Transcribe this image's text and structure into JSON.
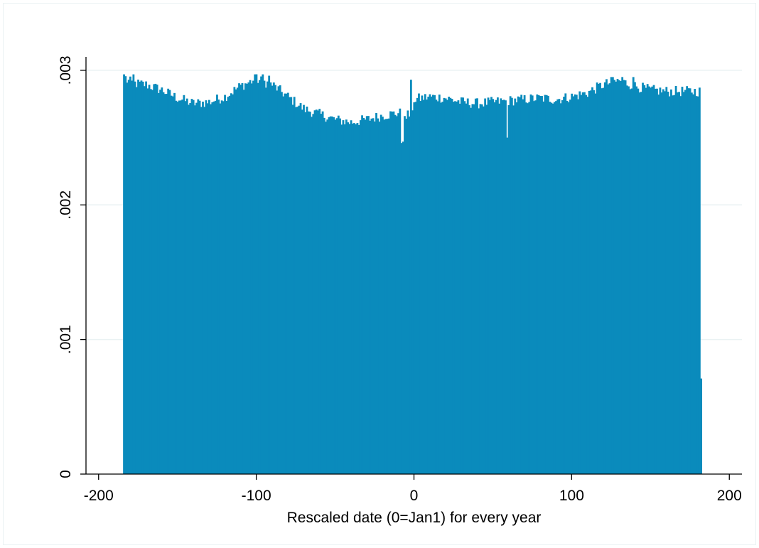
{
  "chart_data": {
    "type": "bar",
    "title": "",
    "xlabel": "Rescaled date (0=Jan1) for every year",
    "ylabel": "",
    "xlim": [
      -208,
      208
    ],
    "ylim": [
      0,
      0.0031
    ],
    "x_ticks": [
      {
        "value": -200,
        "label": "-200"
      },
      {
        "value": -100,
        "label": "-100"
      },
      {
        "value": 0,
        "label": "0"
      },
      {
        "value": 100,
        "label": "100"
      },
      {
        "value": 200,
        "label": "200"
      }
    ],
    "y_ticks": [
      {
        "value": 0,
        "label": "0"
      },
      {
        "value": 0.001,
        "label": ".001"
      },
      {
        "value": 0.002,
        "label": ".002"
      },
      {
        "value": 0.003,
        "label": ".003"
      }
    ],
    "grid": true,
    "bar_color": "#0a8bbc",
    "grid_color": "#eaf2f3",
    "bins": {
      "x_start": -184,
      "x_end": 182,
      "width": 1,
      "density_profile": [
        [
          -184,
          0.00296
        ],
        [
          -182,
          0.00292
        ],
        [
          -178,
          0.0029
        ],
        [
          -170,
          0.00289
        ],
        [
          -160,
          0.00285
        ],
        [
          -150,
          0.00279
        ],
        [
          -140,
          0.00275
        ],
        [
          -130,
          0.00276
        ],
        [
          -120,
          0.0028
        ],
        [
          -110,
          0.00288
        ],
        [
          -100,
          0.00293
        ],
        [
          -90,
          0.00289
        ],
        [
          -80,
          0.0028
        ],
        [
          -70,
          0.00271
        ],
        [
          -60,
          0.00267
        ],
        [
          -50,
          0.00263
        ],
        [
          -40,
          0.00261
        ],
        [
          -30,
          0.00263
        ],
        [
          -20,
          0.00266
        ],
        [
          -10,
          0.00268
        ],
        [
          -1,
          0.00266
        ],
        [
          0,
          0.00278
        ],
        [
          10,
          0.0028
        ],
        [
          20,
          0.00279
        ],
        [
          30,
          0.00276
        ],
        [
          40,
          0.00275
        ],
        [
          50,
          0.00276
        ],
        [
          60,
          0.00277
        ],
        [
          70,
          0.00278
        ],
        [
          80,
          0.00279
        ],
        [
          90,
          0.00278
        ],
        [
          100,
          0.0028
        ],
        [
          110,
          0.00283
        ],
        [
          120,
          0.00289
        ],
        [
          130,
          0.00292
        ],
        [
          140,
          0.00288
        ],
        [
          150,
          0.00285
        ],
        [
          160,
          0.00284
        ],
        [
          170,
          0.00284
        ],
        [
          181,
          0.00284
        ]
      ],
      "last_bin": {
        "x": 182,
        "density": 0.00071
      },
      "spikes": [
        {
          "x": -184,
          "density": 0.00297
        },
        {
          "x": -178,
          "density": 0.00297
        },
        {
          "x": -101,
          "density": 0.00297
        },
        {
          "x": -96,
          "density": 0.00297
        },
        {
          "x": -92,
          "density": 0.00296
        },
        {
          "x": -2,
          "density": 0.00293
        },
        {
          "x": 125,
          "density": 0.00295
        },
        {
          "x": 132,
          "density": 0.00295
        },
        {
          "x": 139,
          "density": 0.00295
        }
      ],
      "dips": [
        {
          "x": -8,
          "density": 0.00246
        },
        {
          "x": -7,
          "density": 0.00247
        },
        {
          "x": 59,
          "density": 0.0025
        }
      ]
    }
  }
}
